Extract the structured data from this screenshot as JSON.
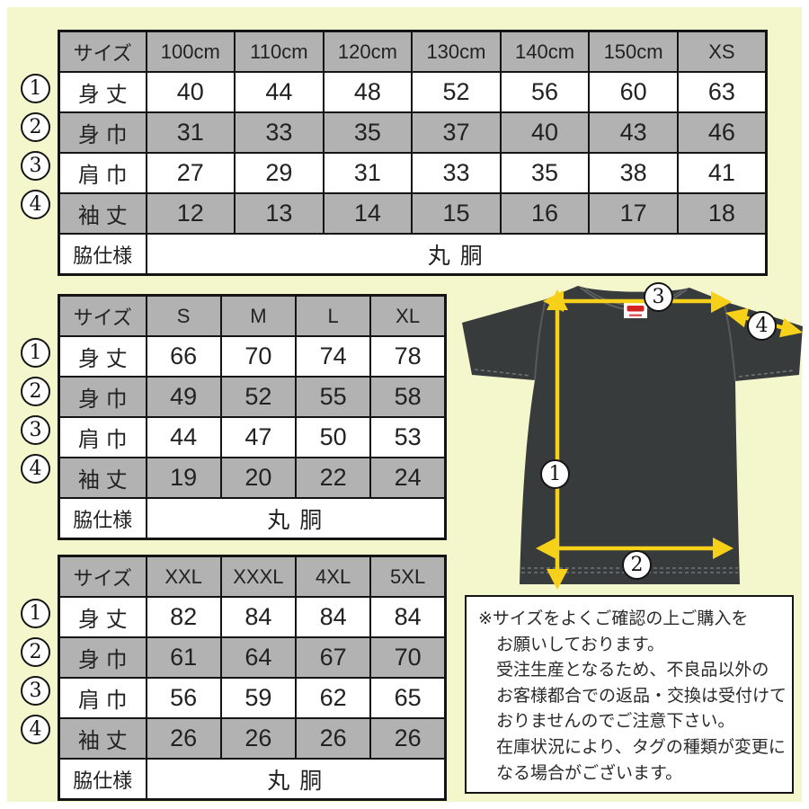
{
  "colors": {
    "background": "#f4f6cc",
    "table_header_gray": "#b2b2b2",
    "border_black": "#141414",
    "shirt_charcoal": "#383b3c",
    "arrow_yellow": "#f7d119",
    "tag_red": "#d22222"
  },
  "markers": [
    "1",
    "2",
    "3",
    "4"
  ],
  "tables": [
    {
      "columns": [
        "サイズ",
        "100cm",
        "110cm",
        "120cm",
        "130cm",
        "140cm",
        "150cm",
        "XS"
      ],
      "rows": [
        {
          "marker": "1",
          "label": "身 丈",
          "values": [
            "40",
            "44",
            "48",
            "52",
            "56",
            "60",
            "63"
          ]
        },
        {
          "marker": "2",
          "label": "身 巾",
          "values": [
            "31",
            "33",
            "35",
            "37",
            "40",
            "43",
            "46"
          ]
        },
        {
          "marker": "3",
          "label": "肩 巾",
          "values": [
            "27",
            "29",
            "31",
            "33",
            "35",
            "38",
            "41"
          ]
        },
        {
          "marker": "4",
          "label": "袖 丈",
          "values": [
            "12",
            "13",
            "14",
            "15",
            "16",
            "17",
            "18"
          ]
        }
      ],
      "footer": {
        "label": "脇仕様",
        "value": "丸 胴"
      }
    },
    {
      "columns": [
        "サイズ",
        "S",
        "M",
        "L",
        "XL"
      ],
      "rows": [
        {
          "marker": "1",
          "label": "身 丈",
          "values": [
            "66",
            "70",
            "74",
            "78"
          ]
        },
        {
          "marker": "2",
          "label": "身 巾",
          "values": [
            "49",
            "52",
            "55",
            "58"
          ]
        },
        {
          "marker": "3",
          "label": "肩 巾",
          "values": [
            "44",
            "47",
            "50",
            "53"
          ]
        },
        {
          "marker": "4",
          "label": "袖 丈",
          "values": [
            "19",
            "20",
            "22",
            "24"
          ]
        }
      ],
      "footer": {
        "label": "脇仕様",
        "value": "丸 胴"
      }
    },
    {
      "columns": [
        "サイズ",
        "XXL",
        "XXXL",
        "4XL",
        "5XL"
      ],
      "rows": [
        {
          "marker": "1",
          "label": "身 丈",
          "values": [
            "82",
            "84",
            "84",
            "84"
          ]
        },
        {
          "marker": "2",
          "label": "身 巾",
          "values": [
            "61",
            "64",
            "67",
            "70"
          ]
        },
        {
          "marker": "3",
          "label": "肩 巾",
          "values": [
            "56",
            "59",
            "62",
            "65"
          ]
        },
        {
          "marker": "4",
          "label": "袖 丈",
          "values": [
            "26",
            "26",
            "26",
            "26"
          ]
        }
      ],
      "footer": {
        "label": "脇仕様",
        "value": "丸 胴"
      }
    }
  ],
  "note": {
    "lines": [
      "※サイズをよくご確認の上ご購入を",
      "お願いしております。",
      "受注生産となるため、不良品以外の",
      "お客様都合での返品・交換は受付けて",
      "おりませんのでご注意下さい。",
      "在庫状況により、タグの種類が変更に",
      "なる場合がございます。"
    ]
  }
}
